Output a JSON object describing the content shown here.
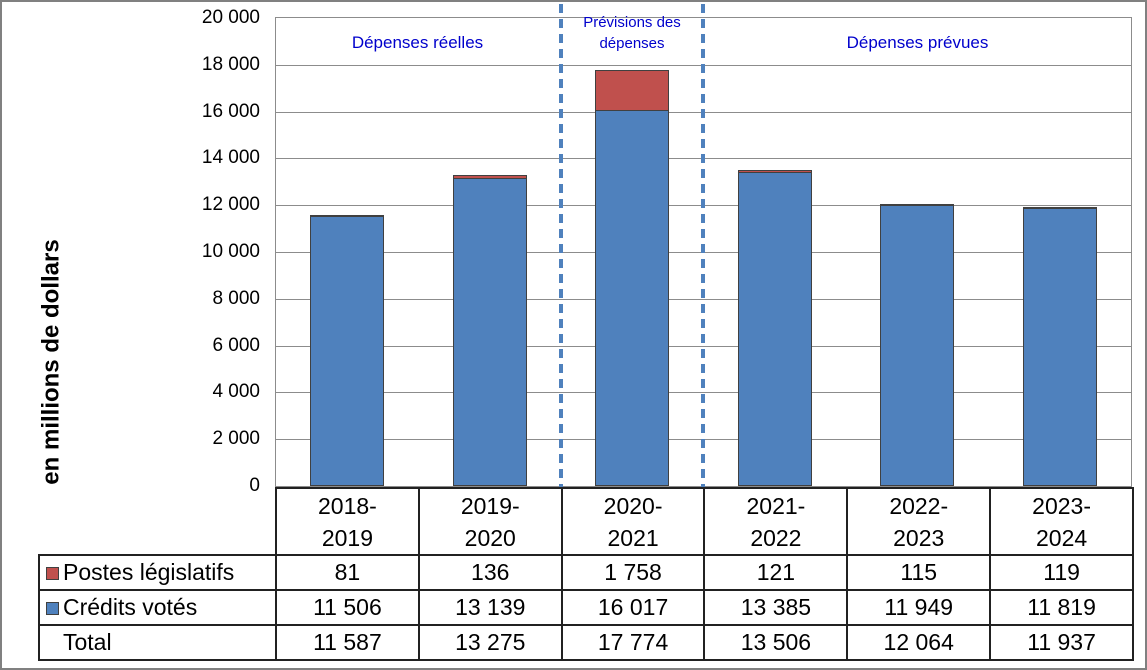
{
  "chart_data": {
    "type": "bar",
    "stacked": true,
    "categories": [
      "2018-2019",
      "2019-2020",
      "2020-2021",
      "2021-2022",
      "2022-2023",
      "2023-2024"
    ],
    "series": [
      {
        "name": "Crédits votés",
        "color": "#4F81BD",
        "values": [
          11506,
          13139,
          16017,
          13385,
          11949,
          11819
        ]
      },
      {
        "name": "Postes législatifs",
        "color": "#C0504D",
        "values": [
          81,
          136,
          1758,
          121,
          115,
          119
        ]
      }
    ],
    "totals": [
      11587,
      13275,
      17774,
      13506,
      12064,
      11937
    ],
    "title": "",
    "xlabel": "",
    "ylabel": "en millions de dollars",
    "ylim": [
      0,
      20000
    ],
    "ytick_step": 2000,
    "ytick_labels": [
      "0",
      "2 000",
      "4 000",
      "6 000",
      "8 000",
      "10 000",
      "12 000",
      "14 000",
      "16 000",
      "18 000",
      "20 000"
    ],
    "grid": "horizontal",
    "legend_position": "table-left",
    "annotations": {
      "phase1": "Dépenses réelles",
      "phase2": "Prévisions des dépenses",
      "phase3": "Dépenses prévues"
    },
    "separator_color": "#4F81BD",
    "separator_between_category_indexes": [
      2,
      3
    ]
  },
  "table": {
    "rows": [
      {
        "label": "Postes législatifs",
        "swatch_color": "#C0504D",
        "values": [
          "81",
          "136",
          "1 758",
          "121",
          "115",
          "119"
        ]
      },
      {
        "label": "Crédits votés",
        "swatch_color": "#4F81BD",
        "values": [
          "11 506",
          "13 139",
          "16 017",
          "13 385",
          "11 949",
          "11 819"
        ]
      },
      {
        "label": "Total",
        "swatch_color": null,
        "values": [
          "11 587",
          "13 275",
          "17 774",
          "13 506",
          "12 064",
          "11 937"
        ]
      }
    ]
  }
}
